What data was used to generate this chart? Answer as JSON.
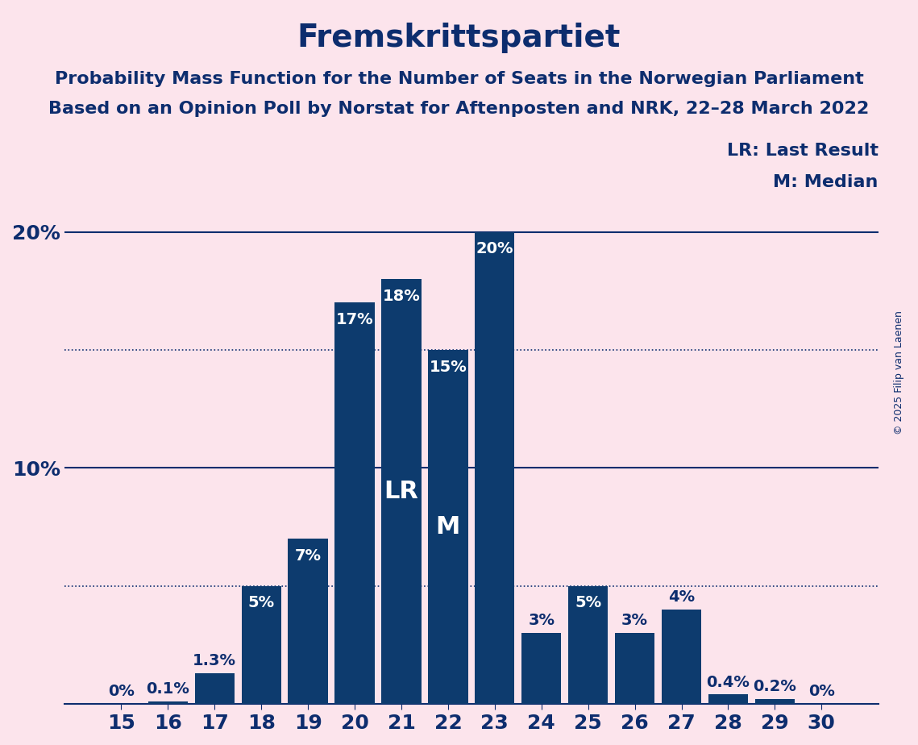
{
  "title": "Fremskrittspartiet",
  "subtitle1": "Probability Mass Function for the Number of Seats in the Norwegian Parliament",
  "subtitle2": "Based on an Opinion Poll by Norstat for Aftenposten and NRK, 22–28 March 2022",
  "copyright": "© 2025 Filip van Laenen",
  "categories": [
    15,
    16,
    17,
    18,
    19,
    20,
    21,
    22,
    23,
    24,
    25,
    26,
    27,
    28,
    29,
    30
  ],
  "values": [
    0.0,
    0.1,
    1.3,
    5.0,
    7.0,
    17.0,
    18.0,
    15.0,
    20.0,
    3.0,
    5.0,
    3.0,
    4.0,
    0.4,
    0.2,
    0.0
  ],
  "labels": [
    "0%",
    "0.1%",
    "1.3%",
    "5%",
    "7%",
    "17%",
    "18%",
    "15%",
    "20%",
    "3%",
    "5%",
    "3%",
    "4%",
    "0.4%",
    "0.2%",
    "0%"
  ],
  "bar_color": "#0d3b6e",
  "background_color": "#fce4ec",
  "text_color": "#0d2d6e",
  "bar_label_color_inside": "#ffffff",
  "bar_label_color_outside": "#0d2d6e",
  "LR_seat": 21,
  "Median_seat": 22,
  "LR_label": "LR",
  "M_label": "M",
  "legend_LR": "LR: Last Result",
  "legend_M": "M: Median",
  "ylim": [
    0,
    22
  ],
  "yticks": [
    0,
    10,
    20
  ],
  "ytick_labels": [
    "",
    "10%",
    "20%"
  ],
  "hline_solid": [
    10.0,
    20.0
  ],
  "hline_dotted": [
    5.0,
    15.0
  ],
  "title_fontsize": 28,
  "subtitle_fontsize": 16,
  "tick_fontsize": 18,
  "bar_label_fontsize": 14,
  "inside_label_fontsize": 22,
  "legend_fontsize": 16,
  "ylabel_fontsize": 20
}
